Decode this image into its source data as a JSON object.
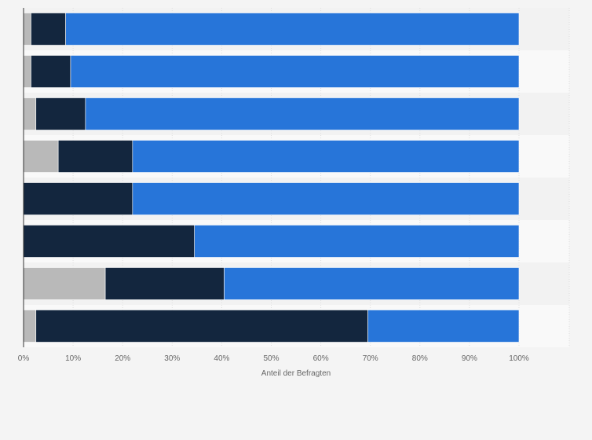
{
  "chart_data": {
    "type": "bar",
    "orientation": "horizontal",
    "stacked": true,
    "categories": [
      "",
      "",
      "",
      "",
      "",
      "",
      "",
      ""
    ],
    "series": [
      {
        "color": "#b9b9b9",
        "values": [
          1.5,
          1.5,
          2.5,
          7,
          0,
          0,
          16.5,
          2.5
        ]
      },
      {
        "color": "#13263e",
        "values": [
          7,
          8,
          10,
          15,
          22,
          34.5,
          24,
          67
        ]
      },
      {
        "color": "#2775d9",
        "values": [
          91.5,
          90.5,
          87.5,
          78,
          78,
          65.5,
          59.5,
          30.5
        ]
      }
    ],
    "x_ticks": [
      "0%",
      "10%",
      "20%",
      "30%",
      "40%",
      "50%",
      "60%",
      "70%",
      "80%",
      "90%",
      "100%"
    ],
    "xlabel": "Anteil der Befragten",
    "xlim": [
      0,
      100
    ],
    "grid": true,
    "legend": "none"
  }
}
